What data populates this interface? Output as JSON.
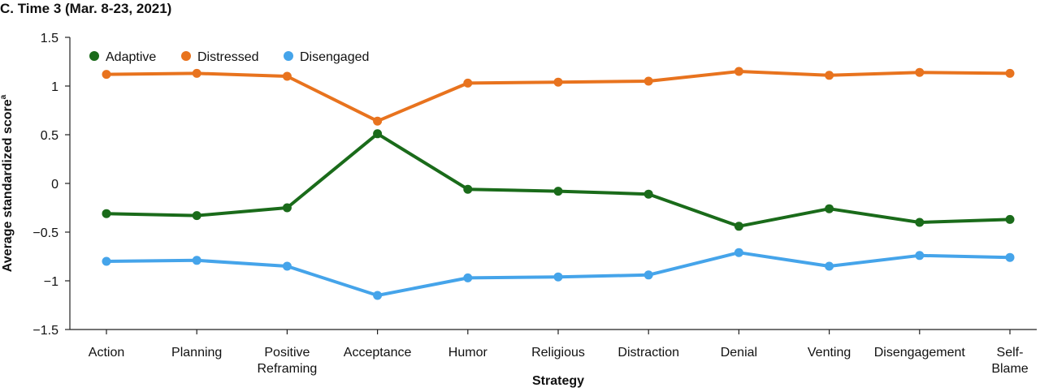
{
  "chart_data": {
    "type": "line",
    "title": "C. Time 3 (Mar. 8-23, 2021)",
    "xlabel": "Strategy",
    "ylabel": "Average standardized score",
    "ylabel_superscript": "a",
    "categories": [
      "Action",
      "Planning",
      "Positive Reframing",
      "Acceptance",
      "Humor",
      "Religious",
      "Distraction",
      "Denial",
      "Venting",
      "Disengagement",
      "Self-Blame"
    ],
    "category_lines": [
      [
        "Action"
      ],
      [
        "Planning"
      ],
      [
        "Positive",
        "Reframing"
      ],
      [
        "Acceptance"
      ],
      [
        "Humor"
      ],
      [
        "Religious"
      ],
      [
        "Distraction"
      ],
      [
        "Denial"
      ],
      [
        "Venting"
      ],
      [
        "Disengagement"
      ],
      [
        "Self-",
        "Blame"
      ]
    ],
    "ylim": [
      -1.5,
      1.5
    ],
    "yticks": [
      1.5,
      1,
      0.5,
      0,
      -0.5,
      -1,
      -1.5
    ],
    "ytick_labels": [
      "1.5",
      "1",
      "0.5",
      "0",
      "−0.5",
      "−1",
      "−1.5"
    ],
    "grid": false,
    "legend_position": "top-left",
    "series": [
      {
        "name": "Adaptive",
        "color": "#1a6b1a",
        "values": [
          -0.31,
          -0.33,
          -0.25,
          0.51,
          -0.06,
          -0.08,
          -0.11,
          -0.44,
          -0.26,
          -0.4,
          -0.37
        ]
      },
      {
        "name": "Distressed",
        "color": "#e8731e",
        "values": [
          1.12,
          1.13,
          1.1,
          0.64,
          1.03,
          1.04,
          1.05,
          1.15,
          1.11,
          1.14,
          1.13
        ]
      },
      {
        "name": "Disengaged",
        "color": "#45a4ea",
        "values": [
          -0.8,
          -0.79,
          -0.85,
          -1.15,
          -0.97,
          -0.96,
          -0.94,
          -0.71,
          -0.85,
          -0.74,
          -0.76
        ]
      }
    ]
  }
}
